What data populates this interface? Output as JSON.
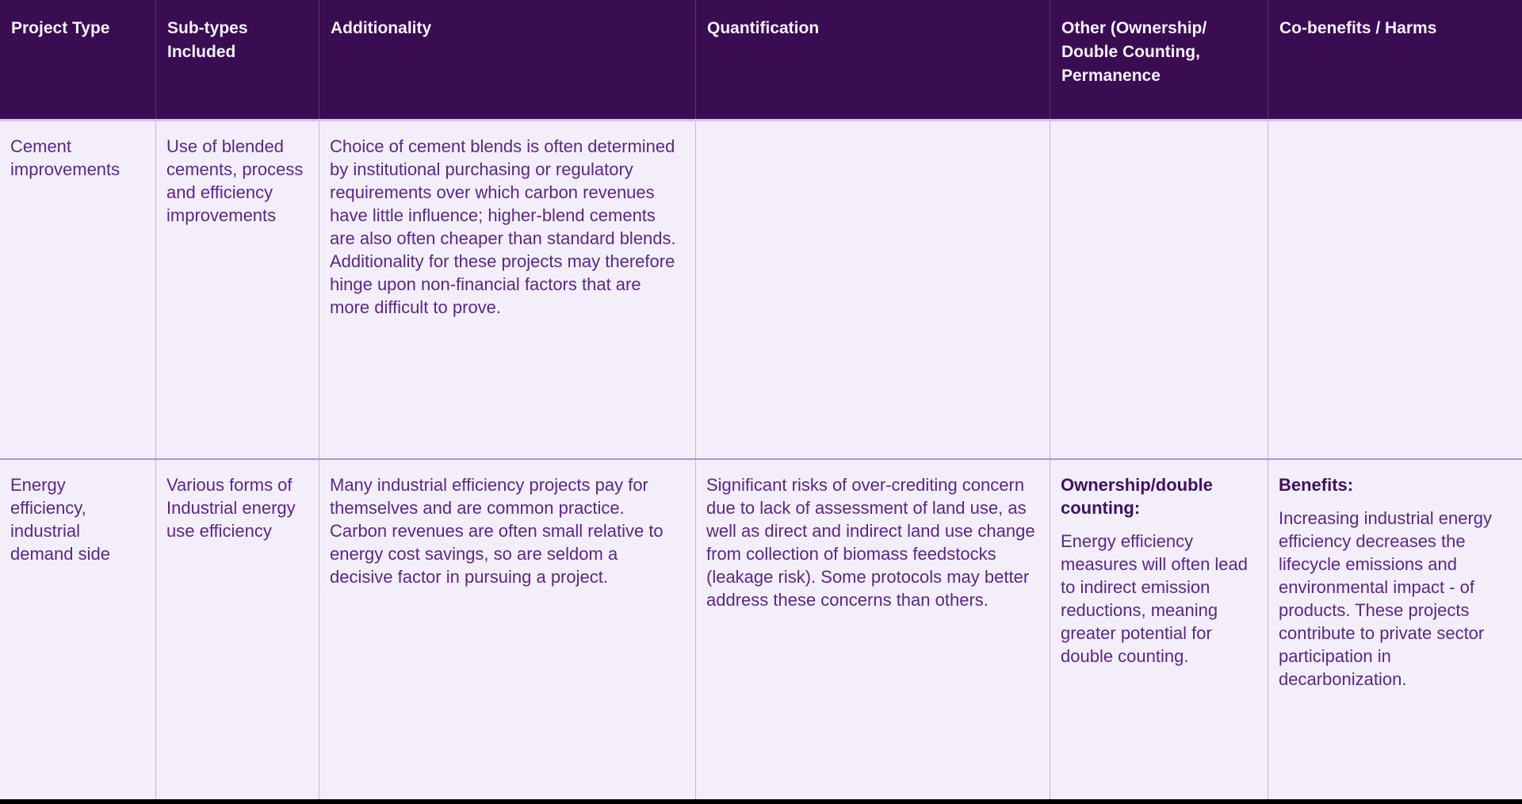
{
  "colors": {
    "header_bg": "#3A0C52",
    "header_text": "#F6F2FA",
    "header_divider": "#5E3579",
    "header_underline": "#D9C2E6",
    "body_bg": "#F3EEFA",
    "body_text": "#5A2882",
    "heading_text": "#3E115F",
    "v_divider": "#C9B3DF",
    "row_divider": "#AE94CB",
    "bottom_bar": "#000000"
  },
  "table": {
    "columns": [
      {
        "label": "Project Type"
      },
      {
        "label": "Sub-types Included"
      },
      {
        "label": "Additionality"
      },
      {
        "label": "Quantification"
      },
      {
        "label": "Other (Ownership/ Double Counting, Permanence"
      },
      {
        "label": "Co-benefits / Harms"
      }
    ],
    "rows": [
      {
        "project_type": "Cement improvements",
        "sub_types": "Use of blended cements, process and efficiency improvements",
        "additionality": "Choice of cement blends is often determined by institutional purchasing or regulatory requirements over which carbon revenues have little influence; higher-blend cements are also often cheaper than standard blends. Additionality for these projects may therefore hinge upon non-financial factors that are more difficult to prove.",
        "quantification": "",
        "other": {
          "heading": "",
          "body": ""
        },
        "cobenefits": {
          "heading": "",
          "body": ""
        }
      },
      {
        "project_type": "Energy efficiency, industrial demand side",
        "sub_types": "Various forms of Industrial energy use efficiency",
        "additionality": "Many industrial efficiency projects pay for themselves and are common practice. Carbon revenues are often small relative to energy cost savings, so are seldom a decisive factor in pursuing a project.",
        "quantification": "Significant risks of over-crediting concern due to lack of assessment of land use, as well as direct and indirect land use change from collection of biomass feedstocks (leakage risk). Some protocols may better address these concerns than others.",
        "other": {
          "heading": "Ownership/double counting:",
          "body": "Energy efficiency measures will often lead to indirect emission reductions, meaning greater potential for double counting."
        },
        "cobenefits": {
          "heading": "Benefits:",
          "body": "Increasing industrial energy efficiency decreases the lifecycle emissions and environmental impact - of products. These projects contribute to private sector participation in decarbonization."
        }
      }
    ]
  }
}
